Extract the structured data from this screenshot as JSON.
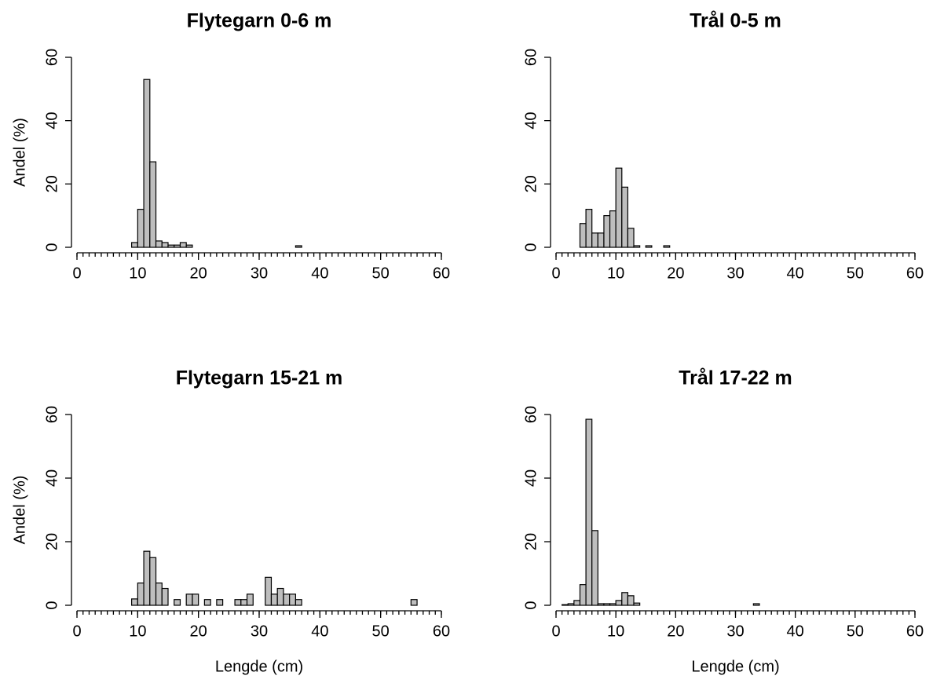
{
  "chart_data": [
    {
      "type": "histogram",
      "title": "Flytegarn 0-6 m",
      "y_label": "Andel (%)",
      "color": "#bebebe",
      "bins": [
        0,
        1,
        2,
        3,
        4,
        5,
        6,
        7,
        8,
        9,
        10,
        11,
        12,
        13,
        14,
        15,
        16,
        17,
        18,
        19,
        20,
        21,
        22,
        23,
        24,
        25,
        26,
        27,
        28,
        29,
        30,
        31,
        32,
        33,
        34,
        35,
        36,
        37,
        38,
        39,
        40,
        41,
        42,
        43,
        44,
        45,
        46,
        47,
        48,
        49,
        50,
        51,
        52,
        53,
        54,
        55,
        56,
        57,
        58,
        59,
        60
      ],
      "values": [
        0,
        0,
        0,
        0,
        0,
        0,
        0,
        0,
        0,
        1.5,
        12,
        53,
        27,
        2,
        1.5,
        0.7,
        0.7,
        1.5,
        0.7,
        0,
        0,
        0,
        0,
        0,
        0,
        0,
        0,
        0,
        0,
        0,
        0,
        0,
        0,
        0,
        0,
        0,
        0.5,
        0,
        0,
        0,
        0,
        0,
        0,
        0,
        0,
        0,
        0,
        0,
        0,
        0,
        0,
        0,
        0,
        0,
        0,
        0,
        0,
        0,
        0,
        0
      ],
      "xlim": [
        0,
        60
      ],
      "xticks": [
        0,
        10,
        20,
        30,
        40,
        50,
        60
      ],
      "ylim": [
        0,
        60
      ],
      "yticks": [
        0,
        20,
        40,
        60
      ]
    },
    {
      "type": "histogram",
      "title": "Trål 0-5 m",
      "color": "#bebebe",
      "bins": [
        0,
        1,
        2,
        3,
        4,
        5,
        6,
        7,
        8,
        9,
        10,
        11,
        12,
        13,
        14,
        15,
        16,
        17,
        18,
        19,
        20,
        21,
        22,
        23,
        24,
        25,
        26,
        27,
        28,
        29,
        30,
        31,
        32,
        33,
        34,
        35,
        36,
        37,
        38,
        39,
        40,
        41,
        42,
        43,
        44,
        45,
        46,
        47,
        48,
        49,
        50,
        51,
        52,
        53,
        54,
        55,
        56,
        57,
        58,
        59,
        60
      ],
      "values": [
        0,
        0,
        0,
        0,
        7.5,
        12,
        4.5,
        4.5,
        10,
        11.5,
        25,
        19,
        6,
        0.5,
        0,
        0.5,
        0,
        0,
        0.5,
        0,
        0,
        0,
        0,
        0,
        0,
        0,
        0,
        0,
        0,
        0,
        0,
        0,
        0,
        0,
        0,
        0,
        0,
        0,
        0,
        0,
        0,
        0,
        0,
        0,
        0,
        0,
        0,
        0,
        0,
        0,
        0,
        0,
        0,
        0,
        0,
        0,
        0,
        0,
        0,
        0
      ],
      "xlim": [
        0,
        60
      ],
      "xticks": [
        0,
        10,
        20,
        30,
        40,
        50,
        60
      ],
      "ylim": [
        0,
        60
      ],
      "yticks": [
        0,
        20,
        40,
        60
      ]
    },
    {
      "type": "histogram",
      "title": "Flytegarn 15-21 m",
      "y_label": "Andel (%)",
      "x_label": "Lengde (cm)",
      "color": "#bebebe",
      "bins": [
        0,
        1,
        2,
        3,
        4,
        5,
        6,
        7,
        8,
        9,
        10,
        11,
        12,
        13,
        14,
        15,
        16,
        17,
        18,
        19,
        20,
        21,
        22,
        23,
        24,
        25,
        26,
        27,
        28,
        29,
        30,
        31,
        32,
        33,
        34,
        35,
        36,
        37,
        38,
        39,
        40,
        41,
        42,
        43,
        44,
        45,
        46,
        47,
        48,
        49,
        50,
        51,
        52,
        53,
        54,
        55,
        56,
        57,
        58,
        59,
        60
      ],
      "values": [
        0,
        0,
        0,
        0,
        0,
        0,
        0,
        0,
        0,
        2,
        7,
        17,
        15,
        7,
        5.3,
        0,
        1.8,
        0,
        3.5,
        3.5,
        0,
        1.8,
        0,
        1.8,
        0,
        0,
        1.8,
        1.8,
        3.5,
        0,
        0,
        8.8,
        3.5,
        5.3,
        3.5,
        3.5,
        1.8,
        0,
        0,
        0,
        0,
        0,
        0,
        0,
        0,
        0,
        0,
        0,
        0,
        0,
        0,
        0,
        0,
        0,
        0,
        1.8,
        0,
        0,
        0,
        0
      ],
      "xlim": [
        0,
        60
      ],
      "xticks": [
        0,
        10,
        20,
        30,
        40,
        50,
        60
      ],
      "ylim": [
        0,
        60
      ],
      "yticks": [
        0,
        20,
        40,
        60
      ]
    },
    {
      "type": "histogram",
      "title": "Trål 17-22 m",
      "x_label": "Lengde (cm)",
      "color": "#bebebe",
      "bins": [
        0,
        1,
        2,
        3,
        4,
        5,
        6,
        7,
        8,
        9,
        10,
        11,
        12,
        13,
        14,
        15,
        16,
        17,
        18,
        19,
        20,
        21,
        22,
        23,
        24,
        25,
        26,
        27,
        28,
        29,
        30,
        31,
        32,
        33,
        34,
        35,
        36,
        37,
        38,
        39,
        40,
        41,
        42,
        43,
        44,
        45,
        46,
        47,
        48,
        49,
        50,
        51,
        52,
        53,
        54,
        55,
        56,
        57,
        58,
        59,
        60
      ],
      "values": [
        0,
        0.2,
        0.5,
        1.5,
        6.5,
        58.5,
        23.5,
        0.5,
        0.5,
        0.5,
        1.5,
        4,
        3,
        0.7,
        0,
        0,
        0,
        0,
        0,
        0,
        0,
        0,
        0,
        0,
        0,
        0,
        0,
        0,
        0,
        0,
        0,
        0,
        0,
        0.5,
        0,
        0,
        0,
        0,
        0,
        0,
        0,
        0,
        0,
        0,
        0,
        0,
        0,
        0,
        0,
        0,
        0,
        0,
        0,
        0,
        0,
        0,
        0,
        0,
        0,
        0
      ],
      "xlim": [
        0,
        60
      ],
      "xticks": [
        0,
        10,
        20,
        30,
        40,
        50,
        60
      ],
      "ylim": [
        0,
        60
      ],
      "yticks": [
        0,
        20,
        40,
        60
      ]
    }
  ]
}
